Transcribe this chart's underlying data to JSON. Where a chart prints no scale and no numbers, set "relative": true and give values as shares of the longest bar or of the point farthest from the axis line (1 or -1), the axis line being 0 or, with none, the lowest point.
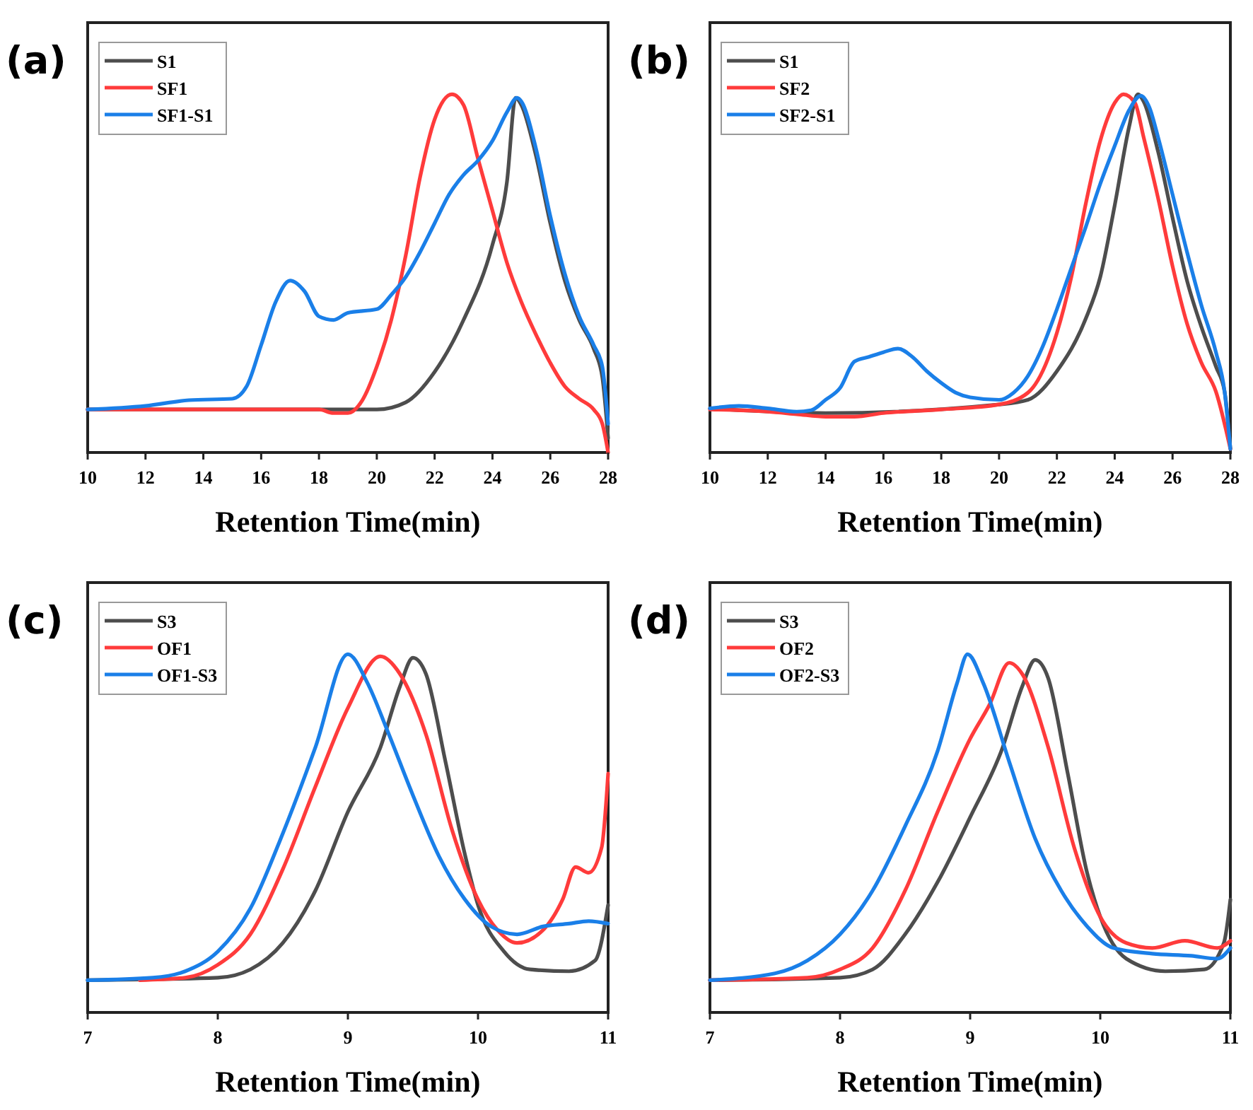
{
  "chart_data": [
    {
      "type": "line",
      "title": "(a)",
      "xlabel": "Retention Time(min)",
      "xlim": [
        10,
        28
      ],
      "xticks": [
        10,
        12,
        14,
        16,
        18,
        20,
        22,
        24,
        26,
        28
      ],
      "relative": true,
      "tick_labels": "x",
      "legend": "top left",
      "line_style": "solid",
      "series": [
        {
          "name": "S1",
          "color": "#4d4d4d",
          "x": [
            10,
            12,
            14,
            16,
            18,
            20,
            21,
            22,
            23,
            24,
            24.5,
            24.8,
            25,
            25.5,
            26,
            26.5,
            27,
            27.5,
            27.8,
            28
          ],
          "values": [
            0.12,
            0.12,
            0.12,
            0.12,
            0.12,
            0.12,
            0.14,
            0.225,
            0.37,
            0.58,
            0.755,
            0.99,
            0.97,
            0.83,
            0.64,
            0.48,
            0.37,
            0.29,
            0.21,
            0.04
          ]
        },
        {
          "name": "SF1",
          "color": "#ff3b3b",
          "x": [
            10,
            12,
            14,
            16,
            18,
            18.5,
            19,
            19.5,
            20,
            20.5,
            21,
            21.5,
            22,
            22.6,
            23,
            23.5,
            24,
            24.5,
            25,
            25.5,
            26,
            26.5,
            27,
            27.5,
            27.8,
            28
          ],
          "values": [
            0.12,
            0.12,
            0.12,
            0.12,
            0.12,
            0.11,
            0.11,
            0.146,
            0.24,
            0.37,
            0.55,
            0.77,
            0.93,
            1,
            0.97,
            0.82,
            0.675,
            0.53,
            0.42,
            0.33,
            0.25,
            0.185,
            0.15,
            0.12,
            0.08,
            0
          ]
        },
        {
          "name": "SF1-S1",
          "color": "#1a7fe8",
          "x": [
            10,
            12,
            13.5,
            15,
            15.5,
            16,
            16.5,
            17,
            17.5,
            18,
            18.5,
            19,
            20,
            20.5,
            21,
            21.5,
            22,
            22.5,
            23,
            23.5,
            24,
            24.5,
            24.85,
            25,
            25.5,
            26,
            26.5,
            27,
            27.5,
            27.8,
            28
          ],
          "values": [
            0.12,
            0.13,
            0.146,
            0.15,
            0.185,
            0.3,
            0.42,
            0.48,
            0.45,
            0.38,
            0.37,
            0.39,
            0.4,
            0.44,
            0.49,
            0.56,
            0.64,
            0.72,
            0.775,
            0.815,
            0.87,
            0.95,
            0.99,
            0.98,
            0.85,
            0.66,
            0.5,
            0.38,
            0.3,
            0.24,
            0.08
          ]
        }
      ]
    },
    {
      "type": "line",
      "title": "(b)",
      "xlabel": "Retention Time(min)",
      "xlim": [
        10,
        28
      ],
      "xticks": [
        10,
        12,
        14,
        16,
        18,
        20,
        22,
        24,
        26,
        28
      ],
      "relative": true,
      "tick_labels": "x",
      "legend": "top left",
      "line_style": "solid",
      "series": [
        {
          "name": "S1",
          "color": "#4d4d4d",
          "x": [
            10,
            14,
            20,
            21,
            22,
            23,
            23.5,
            24,
            24.5,
            24.8,
            25,
            25.5,
            26,
            26.5,
            27,
            27.5,
            27.8,
            28
          ],
          "values": [
            0.123,
            0.11,
            0.134,
            0.147,
            0.227,
            0.374,
            0.49,
            0.69,
            0.91,
            1,
            0.98,
            0.84,
            0.655,
            0.48,
            0.35,
            0.24,
            0.17,
            0.01
          ]
        },
        {
          "name": "SF2",
          "color": "#ff3b3b",
          "x": [
            10,
            12,
            13,
            14,
            15,
            16,
            18,
            20,
            21,
            22,
            22.5,
            23,
            23.5,
            24,
            24.3,
            24.7,
            25,
            25.5,
            26,
            26.5,
            27,
            27.5,
            28
          ],
          "values": [
            0.12,
            0.114,
            0.107,
            0.1,
            0.1,
            0.11,
            0.12,
            0.134,
            0.167,
            0.334,
            0.49,
            0.695,
            0.87,
            0.976,
            1,
            0.976,
            0.88,
            0.71,
            0.52,
            0.36,
            0.25,
            0.17,
            0.01
          ]
        },
        {
          "name": "SF2-S1",
          "color": "#1a7fe8",
          "x": [
            10,
            11,
            12,
            13,
            13.5,
            14,
            14.5,
            15,
            15.5,
            16,
            16.5,
            17,
            17.5,
            18,
            18.5,
            19,
            20,
            20.5,
            21,
            21.5,
            22,
            22.5,
            23,
            23.5,
            24,
            24.5,
            24.9,
            25.2,
            25.5,
            26,
            26.5,
            27,
            27.5,
            27.8,
            28
          ],
          "values": [
            0.123,
            0.13,
            0.123,
            0.114,
            0.118,
            0.147,
            0.18,
            0.254,
            0.267,
            0.28,
            0.29,
            0.267,
            0.227,
            0.194,
            0.167,
            0.154,
            0.147,
            0.167,
            0.214,
            0.294,
            0.4,
            0.515,
            0.63,
            0.75,
            0.856,
            0.956,
            0.996,
            0.963,
            0.88,
            0.72,
            0.56,
            0.41,
            0.28,
            0.17,
            0.01
          ]
        }
      ]
    },
    {
      "type": "line",
      "title": "(c)",
      "xlabel": "Retention Time(min)",
      "xlim": [
        7,
        11
      ],
      "xticks": [
        7,
        8,
        9,
        10,
        11
      ],
      "relative": true,
      "tick_labels": "x",
      "legend": "top left",
      "line_style": "solid",
      "series": [
        {
          "name": "S3",
          "color": "#4d4d4d",
          "x": [
            7,
            8,
            8.25,
            8.5,
            8.75,
            9,
            9.25,
            9.4,
            9.5,
            9.6,
            9.75,
            9.9,
            10,
            10.2,
            10.4,
            10.7,
            10.9,
            11
          ],
          "values": [
            0.09,
            0.097,
            0.12,
            0.194,
            0.34,
            0.56,
            0.74,
            0.91,
            0.99,
            0.945,
            0.7,
            0.44,
            0.3,
            0.17,
            0.12,
            0.115,
            0.145,
            0.3
          ]
        },
        {
          "name": "OF1",
          "color": "#ff3b3b",
          "x": [
            7.4,
            7.75,
            8,
            8.25,
            8.5,
            8.75,
            9,
            9.25,
            9.4,
            9.6,
            9.8,
            10,
            10.15,
            10.3,
            10.5,
            10.65,
            10.75,
            10.85,
            10.95,
            11
          ],
          "values": [
            0.09,
            0.097,
            0.133,
            0.218,
            0.4,
            0.63,
            0.85,
            0.994,
            0.945,
            0.776,
            0.51,
            0.315,
            0.23,
            0.194,
            0.23,
            0.315,
            0.406,
            0.39,
            0.46,
            0.667
          ]
        },
        {
          "name": "OF1-S3",
          "color": "#1a7fe8",
          "x": [
            7,
            7.5,
            7.75,
            8,
            8.25,
            8.5,
            8.75,
            9,
            9.15,
            9.3,
            9.5,
            9.7,
            9.9,
            10.1,
            10.3,
            10.5,
            10.7,
            10.85,
            11
          ],
          "values": [
            0.09,
            0.097,
            0.115,
            0.17,
            0.29,
            0.5,
            0.74,
            1,
            0.92,
            0.79,
            0.606,
            0.436,
            0.315,
            0.24,
            0.218,
            0.24,
            0.248,
            0.255,
            0.248
          ]
        }
      ]
    },
    {
      "type": "line",
      "title": "(d)",
      "xlabel": "Retention Time(min)",
      "xlim": [
        7,
        11
      ],
      "xticks": [
        7,
        8,
        9,
        10,
        11
      ],
      "relative": true,
      "tick_labels": "x",
      "legend": "top left",
      "line_style": "solid",
      "series": [
        {
          "name": "S3",
          "color": "#4d4d4d",
          "x": [
            7,
            8,
            8.25,
            8.5,
            8.75,
            9,
            9.25,
            9.4,
            9.5,
            9.6,
            9.75,
            9.9,
            10,
            10.2,
            10.5,
            10.8,
            10.95,
            11
          ],
          "values": [
            0.09,
            0.097,
            0.12,
            0.218,
            0.364,
            0.545,
            0.74,
            0.91,
            0.984,
            0.933,
            0.667,
            0.388,
            0.267,
            0.15,
            0.115,
            0.12,
            0.194,
            0.315
          ]
        },
        {
          "name": "OF2",
          "color": "#ff3b3b",
          "x": [
            7,
            7.75,
            8,
            8.25,
            8.5,
            8.75,
            9,
            9.15,
            9.3,
            9.4,
            9.6,
            9.8,
            10,
            10.2,
            10.4,
            10.65,
            10.9,
            11
          ],
          "values": [
            0.09,
            0.097,
            0.12,
            0.18,
            0.34,
            0.56,
            0.764,
            0.86,
            0.976,
            0.945,
            0.74,
            0.46,
            0.267,
            0.194,
            0.18,
            0.2,
            0.18,
            0.2
          ]
        },
        {
          "name": "OF2-S3",
          "color": "#1a7fe8",
          "x": [
            7,
            7.5,
            7.75,
            8,
            8.25,
            8.5,
            8.75,
            8.9,
            8.98,
            9.1,
            9.3,
            9.5,
            9.7,
            9.9,
            10.1,
            10.4,
            10.7,
            10.9,
            11
          ],
          "values": [
            0.09,
            0.109,
            0.145,
            0.218,
            0.34,
            0.52,
            0.73,
            0.92,
            1,
            0.92,
            0.7,
            0.485,
            0.34,
            0.24,
            0.18,
            0.164,
            0.158,
            0.15,
            0.18
          ]
        }
      ]
    }
  ]
}
